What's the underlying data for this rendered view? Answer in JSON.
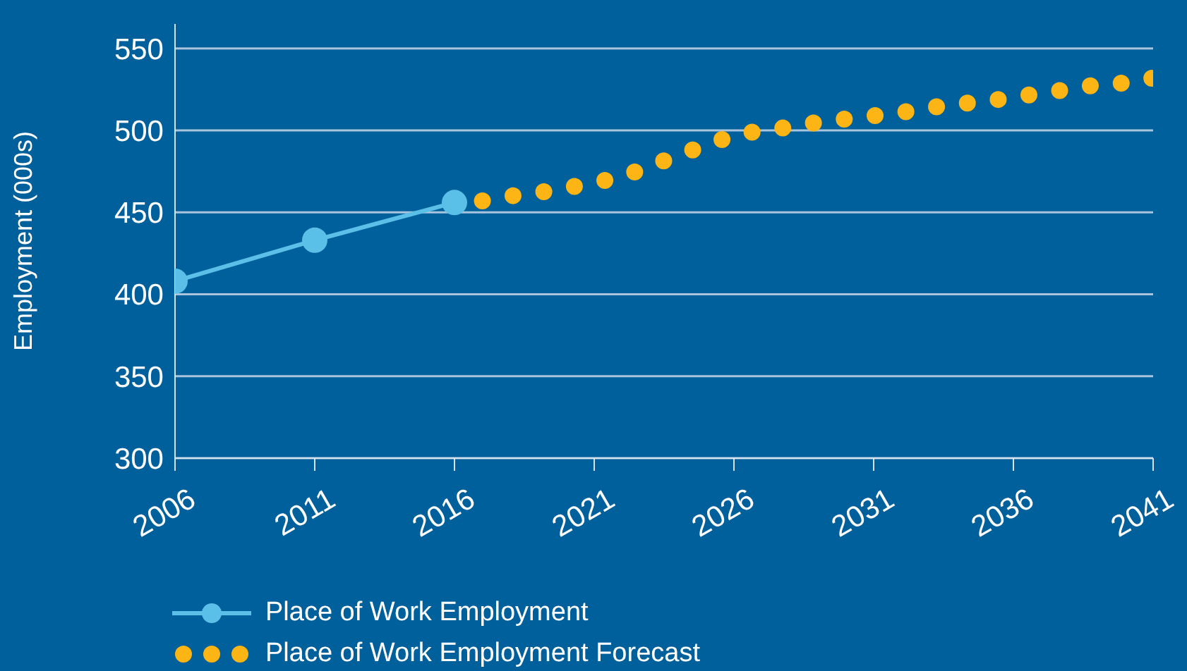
{
  "chart_data": {
    "type": "line",
    "ylabel": "Employment (000s)",
    "xlim": [
      2006,
      2041
    ],
    "xticks": [
      2006,
      2011,
      2016,
      2021,
      2026,
      2031,
      2036,
      2041
    ],
    "ylim": [
      300,
      565
    ],
    "yticks": [
      300,
      350,
      400,
      450,
      500,
      550
    ],
    "grid": "y",
    "legend": "bottom left",
    "series": [
      {
        "name": "Place of Work Employment",
        "color": "#5bc0e8",
        "marker": "circle",
        "line_style": "solid",
        "x": [
          2006,
          2011,
          2016
        ],
        "values": [
          408,
          433,
          456
        ]
      },
      {
        "name": "Place of Work Employment Forecast",
        "color": "#fdb515",
        "marker": "none",
        "line_style": "dotted",
        "x": [
          2017,
          2018,
          2019,
          2020,
          2021,
          2022,
          2023,
          2024,
          2025,
          2026,
          2027,
          2028,
          2029,
          2030,
          2031,
          2032,
          2033,
          2034,
          2035,
          2036,
          2037,
          2038,
          2039,
          2040,
          2041
        ],
        "values": [
          457,
          460,
          462,
          465,
          468,
          472,
          478,
          485,
          491,
          497,
          500,
          502,
          505,
          507,
          509,
          511,
          514,
          516,
          518,
          520,
          523,
          525,
          528,
          529,
          532
        ]
      }
    ]
  }
}
